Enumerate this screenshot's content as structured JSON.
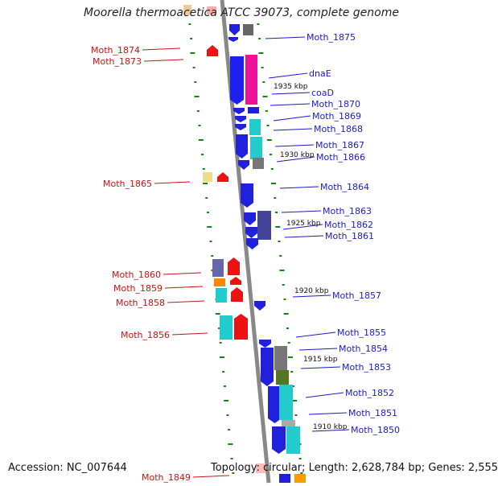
{
  "title": "Moorella thermoacetica ATCC 39073, complete genome",
  "footer": {
    "accession": "Accession: NC_007644",
    "stats": "Topology: circular; Length: 2,628,784 bp; Genes: 2,555"
  },
  "colors": {
    "right_label": "#1a1acc",
    "left_label": "#cc1111",
    "backbone": "#888888",
    "tick": "#118811"
  },
  "kbp_markers": [
    "1935 kbp",
    "1930 kbp",
    "1925 kbp",
    "1920 kbp",
    "1915 kbp",
    "1910 kbp"
  ],
  "right_genes": [
    "Moth_1875",
    "dnaE",
    "coaD",
    "Moth_1870",
    "Moth_1869",
    "Moth_1868",
    "Moth_1867",
    "Moth_1866",
    "Moth_1864",
    "Moth_1863",
    "Moth_1862",
    "Moth_1861",
    "Moth_1857",
    "Moth_1855",
    "Moth_1854",
    "Moth_1853",
    "Moth_1852",
    "Moth_1851",
    "Moth_1850"
  ],
  "left_genes": [
    "Moth_1874",
    "Moth_1873",
    "Moth_1865",
    "Moth_1860",
    "Moth_1859",
    "Moth_1858",
    "Moth_1856",
    "Moth_1849"
  ]
}
